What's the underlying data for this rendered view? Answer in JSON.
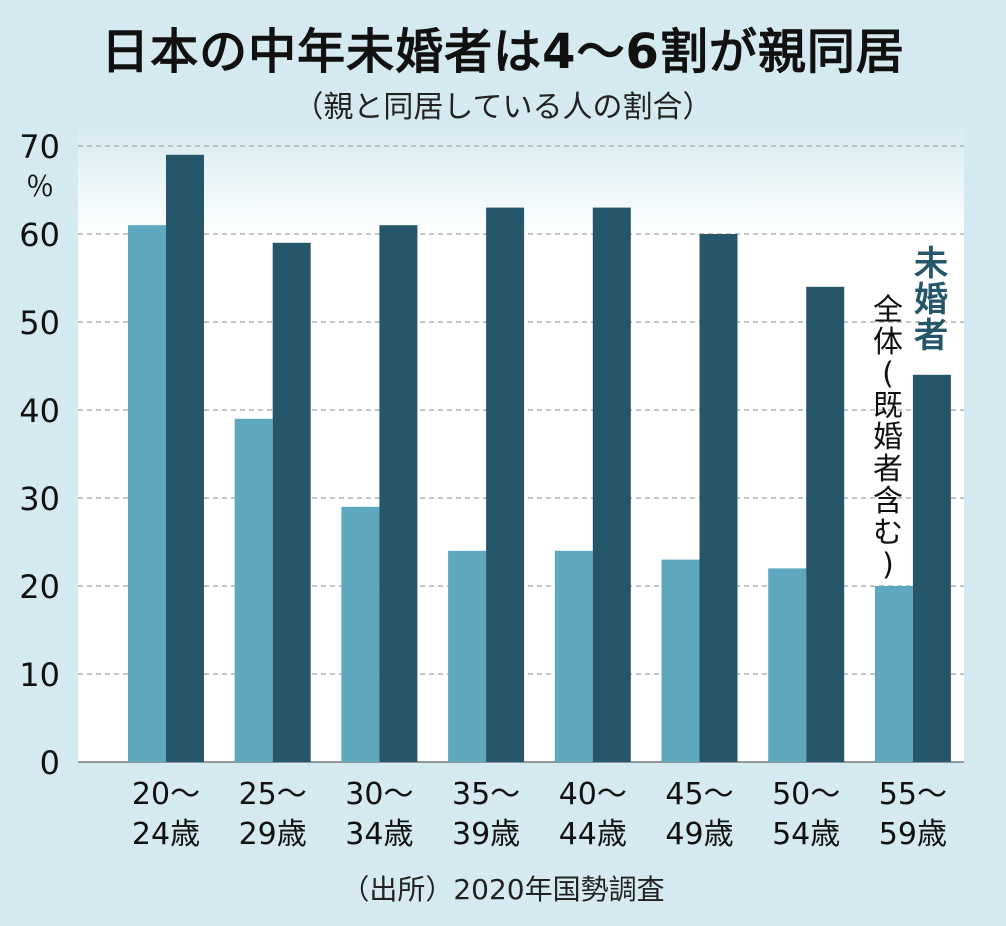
{
  "chart_data": {
    "type": "bar",
    "title": "日本の中年未婚者は4～6割が親同居",
    "subtitle": "（親と同居している人の割合）",
    "y_unit": "％",
    "ylim": [
      0,
      70
    ],
    "yticks": [
      0,
      10,
      20,
      30,
      40,
      50,
      60,
      70
    ],
    "grid": true,
    "categories": [
      [
        "20～",
        "24歳"
      ],
      [
        "25～",
        "29歳"
      ],
      [
        "30～",
        "34歳"
      ],
      [
        "35～",
        "39歳"
      ],
      [
        "40～",
        "44歳"
      ],
      [
        "45～",
        "49歳"
      ],
      [
        "50～",
        "54歳"
      ],
      [
        "55～",
        "59歳"
      ]
    ],
    "series": [
      {
        "name": "全体（既婚者含む）",
        "color": "#5da8bf",
        "values": [
          61,
          39,
          29,
          24,
          24,
          23,
          22,
          20
        ]
      },
      {
        "name": "未婚者",
        "color": "#265669",
        "values": [
          69,
          59,
          61,
          63,
          63,
          60,
          54,
          44
        ]
      }
    ],
    "source": "（出所）2020年国勢調査"
  }
}
